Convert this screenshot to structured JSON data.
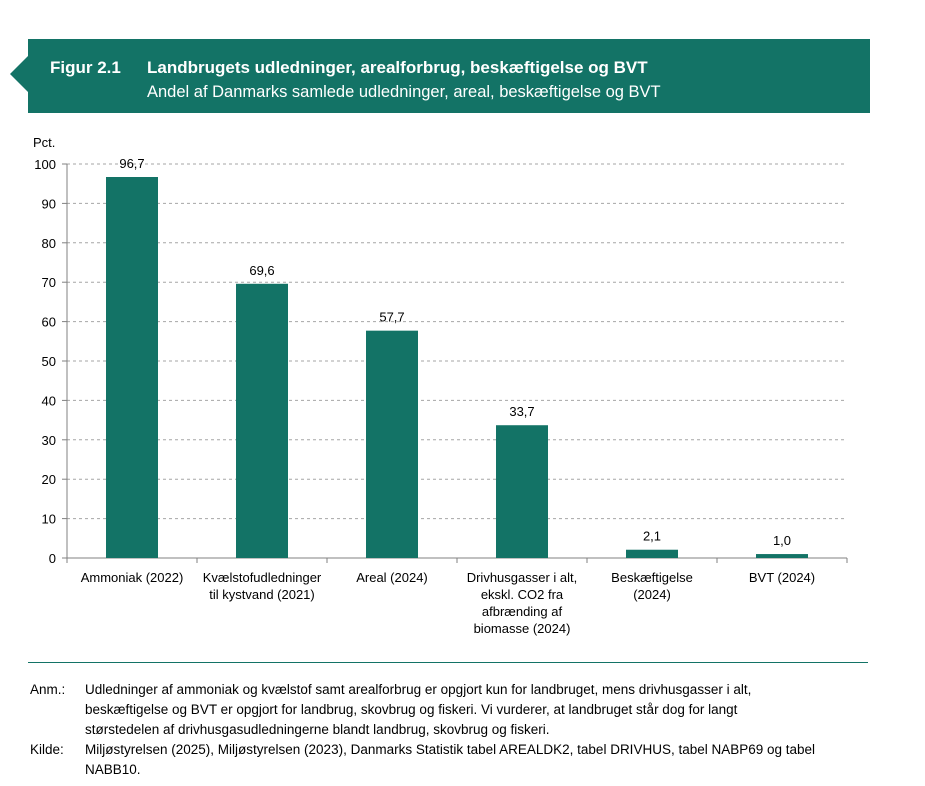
{
  "figure": {
    "number": "Figur 2.1",
    "title": "Landbrugets udledninger, arealforbrug, beskæftigelse og BVT",
    "subtitle": "Andel af Danmarks samlede udledninger, areal, beskæftigelse og BVT"
  },
  "colors": {
    "brand": "#137366",
    "bar": "#137366",
    "grid": "#a6a6a6"
  },
  "chart_data": {
    "type": "bar",
    "ylabel": "Pct.",
    "ylim": [
      0,
      100
    ],
    "yticks": [
      0,
      10,
      20,
      30,
      40,
      50,
      60,
      70,
      80,
      90,
      100
    ],
    "grid": true,
    "categories": [
      [
        "Ammoniak (2022)"
      ],
      [
        "Kvælstofudledninger",
        "til kystvand (2021)"
      ],
      [
        "Areal (2024)"
      ],
      [
        "Drivhusgasser i alt,",
        "ekskl. CO2 fra",
        "afbrænding af",
        "biomasse (2024)"
      ],
      [
        "Beskæftigelse",
        "(2024)"
      ],
      [
        "BVT (2024)"
      ]
    ],
    "values": [
      96.7,
      69.6,
      57.7,
      33.7,
      2.1,
      1.0
    ],
    "data_labels": [
      "96,7",
      "69,6",
      "57,7",
      "33,7",
      "2,1",
      "1,0"
    ]
  },
  "notes": {
    "anm_label": "Anm.:",
    "anm_lines": [
      "Udledninger af ammoniak og kvælstof samt arealforbrug er opgjort kun for landbruget, mens drivhusgasser i alt,",
      "beskæftigelse og BVT er opgjort for landbrug, skovbrug og fiskeri. Vi vurderer, at landbruget står dog for langt",
      "størstedelen af drivhusgasudledningerne blandt landbrug, skovbrug og fiskeri."
    ],
    "kilde_label": "Kilde:",
    "kilde_lines": [
      "Miljøstyrelsen (2025), Miljøstyrelsen (2023), Danmarks Statistik tabel AREALDK2, tabel DRIVHUS, tabel NABP69 og tabel",
      "NABB10."
    ]
  }
}
